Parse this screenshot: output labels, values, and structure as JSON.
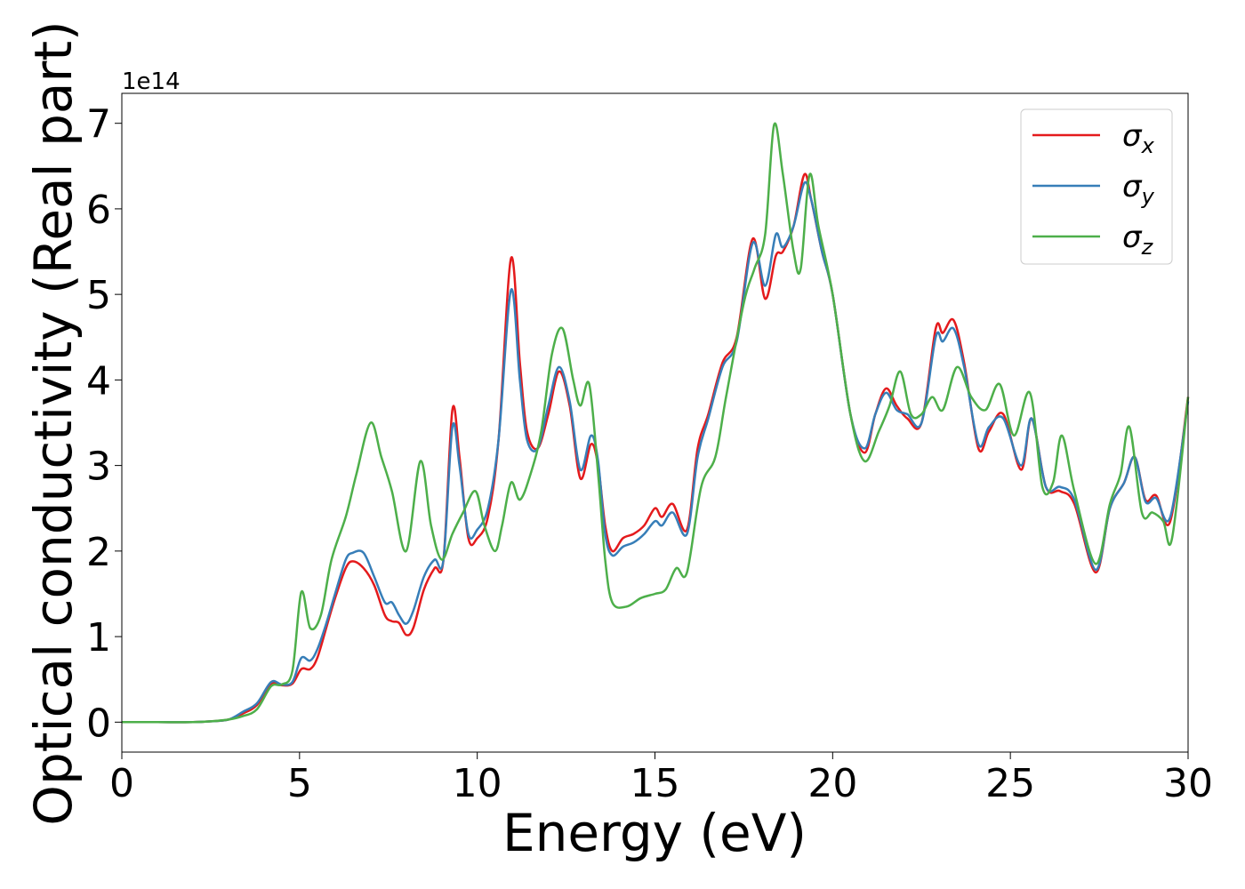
{
  "chart_data": {
    "type": "line",
    "title": "",
    "xlabel": "Energy (eV)",
    "ylabel": "Optical conductivity (Real part)",
    "y_offset_label": "1e14",
    "xlim": [
      0,
      30
    ],
    "ylim": [
      -0.35,
      7.35
    ],
    "x_ticks": [
      "0",
      "5",
      "10",
      "15",
      "20",
      "25",
      "30"
    ],
    "y_ticks": [
      "0",
      "1",
      "2",
      "3",
      "4",
      "5",
      "6",
      "7"
    ],
    "legend_position": "top-right",
    "grid": false,
    "series": [
      {
        "name": "σx",
        "label_base": "σ",
        "label_sub": "x",
        "color": "#e41a1c",
        "points": [
          [
            0,
            0
          ],
          [
            1,
            0
          ],
          [
            2,
            0
          ],
          [
            2.5,
            0.01
          ],
          [
            3,
            0.03
          ],
          [
            3.4,
            0.1
          ],
          [
            3.8,
            0.2
          ],
          [
            4.2,
            0.45
          ],
          [
            4.5,
            0.43
          ],
          [
            4.8,
            0.45
          ],
          [
            5.05,
            0.62
          ],
          [
            5.3,
            0.62
          ],
          [
            5.5,
            0.75
          ],
          [
            5.75,
            1.1
          ],
          [
            6,
            1.45
          ],
          [
            6.3,
            1.8
          ],
          [
            6.5,
            1.88
          ],
          [
            6.8,
            1.8
          ],
          [
            7.1,
            1.6
          ],
          [
            7.4,
            1.25
          ],
          [
            7.6,
            1.18
          ],
          [
            7.8,
            1.16
          ],
          [
            8,
            1.02
          ],
          [
            8.2,
            1.1
          ],
          [
            8.5,
            1.55
          ],
          [
            8.8,
            1.8
          ],
          [
            9.05,
            1.9
          ],
          [
            9.3,
            3.65
          ],
          [
            9.5,
            3.1
          ],
          [
            9.75,
            2.15
          ],
          [
            10,
            2.15
          ],
          [
            10.3,
            2.4
          ],
          [
            10.6,
            3.3
          ],
          [
            10.95,
            5.42
          ],
          [
            11.2,
            4.2
          ],
          [
            11.4,
            3.4
          ],
          [
            11.7,
            3.2
          ],
          [
            12,
            3.6
          ],
          [
            12.3,
            4.1
          ],
          [
            12.6,
            3.7
          ],
          [
            12.9,
            2.85
          ],
          [
            13.2,
            3.25
          ],
          [
            13.4,
            3.0
          ],
          [
            13.6,
            2.3
          ],
          [
            13.8,
            2.0
          ],
          [
            14.1,
            2.15
          ],
          [
            14.4,
            2.2
          ],
          [
            14.7,
            2.3
          ],
          [
            15,
            2.5
          ],
          [
            15.2,
            2.4
          ],
          [
            15.5,
            2.55
          ],
          [
            15.9,
            2.25
          ],
          [
            16.2,
            3.2
          ],
          [
            16.5,
            3.6
          ],
          [
            16.9,
            4.2
          ],
          [
            17.3,
            4.5
          ],
          [
            17.75,
            5.65
          ],
          [
            18.1,
            4.95
          ],
          [
            18.4,
            5.45
          ],
          [
            18.6,
            5.5
          ],
          [
            18.9,
            5.8
          ],
          [
            19.2,
            6.4
          ],
          [
            19.4,
            6.1
          ],
          [
            19.7,
            5.5
          ],
          [
            20,
            5.0
          ],
          [
            20.5,
            3.6
          ],
          [
            20.9,
            3.15
          ],
          [
            21.2,
            3.6
          ],
          [
            21.5,
            3.9
          ],
          [
            21.8,
            3.7
          ],
          [
            22.1,
            3.55
          ],
          [
            22.5,
            3.5
          ],
          [
            22.9,
            4.6
          ],
          [
            23.1,
            4.55
          ],
          [
            23.4,
            4.7
          ],
          [
            23.7,
            4.2
          ],
          [
            24.1,
            3.2
          ],
          [
            24.4,
            3.4
          ],
          [
            24.8,
            3.6
          ],
          [
            25.3,
            2.95
          ],
          [
            25.6,
            3.55
          ],
          [
            26,
            2.75
          ],
          [
            26.4,
            2.7
          ],
          [
            26.8,
            2.55
          ],
          [
            27.4,
            1.75
          ],
          [
            27.8,
            2.5
          ],
          [
            28.2,
            2.8
          ],
          [
            28.5,
            3.1
          ],
          [
            28.8,
            2.6
          ],
          [
            29.1,
            2.65
          ],
          [
            29.5,
            2.35
          ],
          [
            30,
            3.8
          ]
        ]
      },
      {
        "name": "σy",
        "label_base": "σ",
        "label_sub": "y",
        "color": "#377eb8",
        "points": [
          [
            0,
            0
          ],
          [
            1,
            0
          ],
          [
            2,
            0
          ],
          [
            2.5,
            0.01
          ],
          [
            3,
            0.03
          ],
          [
            3.4,
            0.12
          ],
          [
            3.8,
            0.22
          ],
          [
            4.2,
            0.47
          ],
          [
            4.5,
            0.44
          ],
          [
            4.8,
            0.47
          ],
          [
            5.05,
            0.75
          ],
          [
            5.3,
            0.72
          ],
          [
            5.5,
            0.85
          ],
          [
            5.75,
            1.15
          ],
          [
            6,
            1.5
          ],
          [
            6.3,
            1.9
          ],
          [
            6.5,
            1.98
          ],
          [
            6.8,
            1.98
          ],
          [
            7.1,
            1.7
          ],
          [
            7.4,
            1.4
          ],
          [
            7.6,
            1.4
          ],
          [
            7.8,
            1.25
          ],
          [
            8,
            1.15
          ],
          [
            8.2,
            1.3
          ],
          [
            8.5,
            1.7
          ],
          [
            8.8,
            1.9
          ],
          [
            9.05,
            1.9
          ],
          [
            9.3,
            3.45
          ],
          [
            9.5,
            3.0
          ],
          [
            9.75,
            2.2
          ],
          [
            10,
            2.25
          ],
          [
            10.3,
            2.5
          ],
          [
            10.6,
            3.3
          ],
          [
            10.95,
            5.05
          ],
          [
            11.2,
            4.0
          ],
          [
            11.4,
            3.3
          ],
          [
            11.7,
            3.2
          ],
          [
            12,
            3.7
          ],
          [
            12.3,
            4.15
          ],
          [
            12.6,
            3.75
          ],
          [
            12.9,
            2.95
          ],
          [
            13.2,
            3.35
          ],
          [
            13.4,
            3.05
          ],
          [
            13.6,
            2.2
          ],
          [
            13.8,
            1.95
          ],
          [
            14.1,
            2.05
          ],
          [
            14.4,
            2.1
          ],
          [
            14.7,
            2.2
          ],
          [
            15,
            2.35
          ],
          [
            15.2,
            2.3
          ],
          [
            15.5,
            2.45
          ],
          [
            15.9,
            2.2
          ],
          [
            16.2,
            3.1
          ],
          [
            16.5,
            3.55
          ],
          [
            16.9,
            4.15
          ],
          [
            17.3,
            4.45
          ],
          [
            17.75,
            5.6
          ],
          [
            18.1,
            5.1
          ],
          [
            18.4,
            5.7
          ],
          [
            18.6,
            5.55
          ],
          [
            18.9,
            5.8
          ],
          [
            19.2,
            6.3
          ],
          [
            19.4,
            6.1
          ],
          [
            19.7,
            5.5
          ],
          [
            20,
            5.0
          ],
          [
            20.5,
            3.6
          ],
          [
            20.9,
            3.2
          ],
          [
            21.2,
            3.6
          ],
          [
            21.5,
            3.85
          ],
          [
            21.8,
            3.65
          ],
          [
            22.1,
            3.6
          ],
          [
            22.5,
            3.5
          ],
          [
            22.9,
            4.5
          ],
          [
            23.1,
            4.45
          ],
          [
            23.4,
            4.6
          ],
          [
            23.7,
            4.15
          ],
          [
            24.1,
            3.25
          ],
          [
            24.4,
            3.45
          ],
          [
            24.8,
            3.55
          ],
          [
            25.3,
            3.0
          ],
          [
            25.6,
            3.55
          ],
          [
            26,
            2.75
          ],
          [
            26.4,
            2.75
          ],
          [
            26.8,
            2.6
          ],
          [
            27.4,
            1.78
          ],
          [
            27.8,
            2.5
          ],
          [
            28.2,
            2.8
          ],
          [
            28.5,
            3.1
          ],
          [
            28.8,
            2.58
          ],
          [
            29.1,
            2.62
          ],
          [
            29.5,
            2.4
          ],
          [
            30,
            3.75
          ]
        ]
      },
      {
        "name": "σz",
        "label_base": "σ",
        "label_sub": "z",
        "color": "#4daf4a",
        "points": [
          [
            0,
            0
          ],
          [
            1,
            0
          ],
          [
            2,
            0
          ],
          [
            2.5,
            0.01
          ],
          [
            3,
            0.03
          ],
          [
            3.4,
            0.07
          ],
          [
            3.8,
            0.15
          ],
          [
            4.2,
            0.42
          ],
          [
            4.5,
            0.44
          ],
          [
            4.8,
            0.6
          ],
          [
            5.05,
            1.52
          ],
          [
            5.3,
            1.1
          ],
          [
            5.6,
            1.25
          ],
          [
            5.9,
            1.9
          ],
          [
            6.3,
            2.4
          ],
          [
            6.6,
            2.9
          ],
          [
            7,
            3.5
          ],
          [
            7.3,
            3.1
          ],
          [
            7.6,
            2.7
          ],
          [
            8,
            2.0
          ],
          [
            8.4,
            3.05
          ],
          [
            8.7,
            2.3
          ],
          [
            9,
            1.9
          ],
          [
            9.3,
            2.2
          ],
          [
            9.6,
            2.45
          ],
          [
            9.95,
            2.7
          ],
          [
            10.2,
            2.3
          ],
          [
            10.5,
            2.0
          ],
          [
            10.7,
            2.3
          ],
          [
            10.95,
            2.8
          ],
          [
            11.2,
            2.6
          ],
          [
            11.5,
            2.9
          ],
          [
            11.8,
            3.4
          ],
          [
            12.1,
            4.3
          ],
          [
            12.4,
            4.6
          ],
          [
            12.7,
            4.0
          ],
          [
            12.9,
            3.7
          ],
          [
            13.15,
            3.95
          ],
          [
            13.4,
            2.9
          ],
          [
            13.6,
            1.9
          ],
          [
            13.8,
            1.4
          ],
          [
            14.2,
            1.35
          ],
          [
            14.6,
            1.45
          ],
          [
            15,
            1.5
          ],
          [
            15.3,
            1.55
          ],
          [
            15.6,
            1.8
          ],
          [
            15.9,
            1.75
          ],
          [
            16.3,
            2.75
          ],
          [
            16.7,
            3.1
          ],
          [
            17,
            3.8
          ],
          [
            17.5,
            4.9
          ],
          [
            17.8,
            5.3
          ],
          [
            18.1,
            5.7
          ],
          [
            18.35,
            6.98
          ],
          [
            18.6,
            6.4
          ],
          [
            18.9,
            5.5
          ],
          [
            19.1,
            5.3
          ],
          [
            19.35,
            6.4
          ],
          [
            19.6,
            5.8
          ],
          [
            20,
            5.0
          ],
          [
            20.5,
            3.6
          ],
          [
            20.9,
            3.05
          ],
          [
            21.3,
            3.4
          ],
          [
            21.6,
            3.7
          ],
          [
            21.9,
            4.1
          ],
          [
            22.2,
            3.6
          ],
          [
            22.5,
            3.6
          ],
          [
            22.8,
            3.8
          ],
          [
            23.1,
            3.65
          ],
          [
            23.5,
            4.15
          ],
          [
            23.9,
            3.8
          ],
          [
            24.3,
            3.65
          ],
          [
            24.7,
            3.95
          ],
          [
            25.1,
            3.35
          ],
          [
            25.55,
            3.85
          ],
          [
            25.9,
            2.75
          ],
          [
            26.2,
            2.8
          ],
          [
            26.45,
            3.35
          ],
          [
            26.8,
            2.7
          ],
          [
            27.4,
            1.85
          ],
          [
            27.8,
            2.55
          ],
          [
            28.1,
            2.9
          ],
          [
            28.35,
            3.45
          ],
          [
            28.7,
            2.45
          ],
          [
            29,
            2.45
          ],
          [
            29.3,
            2.35
          ],
          [
            29.55,
            2.15
          ],
          [
            30,
            3.8
          ]
        ]
      }
    ]
  }
}
